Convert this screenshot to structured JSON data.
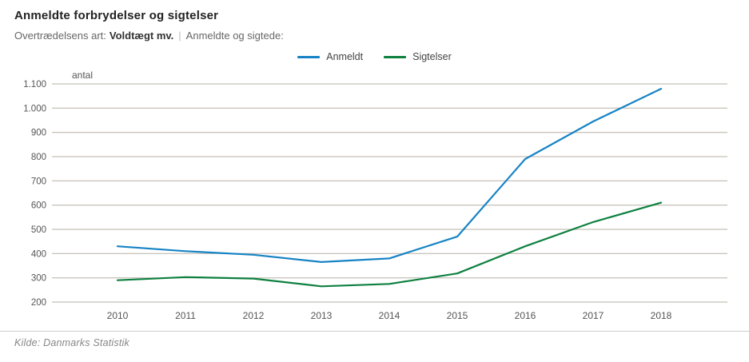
{
  "chart_data": {
    "type": "line",
    "title": "Anmeldte forbrydelser og sigtelser",
    "subtitle": {
      "prefix": "Overtrædelsens art:",
      "value": "Voldtægt mv.",
      "separator": "|",
      "suffix": "Anmeldte og sigtede:"
    },
    "x": [
      2010,
      2011,
      2012,
      2013,
      2014,
      2015,
      2016,
      2017,
      2018
    ],
    "series": [
      {
        "name": "Anmeldt",
        "color": "#1783c5",
        "values": [
          430,
          410,
          395,
          365,
          380,
          470,
          790,
          945,
          1080
        ]
      },
      {
        "name": "Sigtelser",
        "color": "#0e8040",
        "values": [
          290,
          303,
          297,
          265,
          275,
          318,
          430,
          530,
          610
        ]
      }
    ],
    "xlabel": "",
    "ylabel": "antal",
    "ylim": [
      200,
      1100
    ],
    "yticks": {
      "values": [
        200,
        300,
        400,
        500,
        600,
        700,
        800,
        900,
        1000,
        1100
      ],
      "labels": [
        "200",
        "300",
        "400",
        "500",
        "600",
        "700",
        "800",
        "900",
        "1.000",
        "1.100"
      ]
    },
    "grid": true,
    "legend_position": "top-center"
  },
  "footer": {
    "source": "Kilde: Danmarks Statistik"
  },
  "colors": {
    "gridline": "#b7b1a6",
    "tick_text": "#555555",
    "divider": "#cccccc"
  }
}
